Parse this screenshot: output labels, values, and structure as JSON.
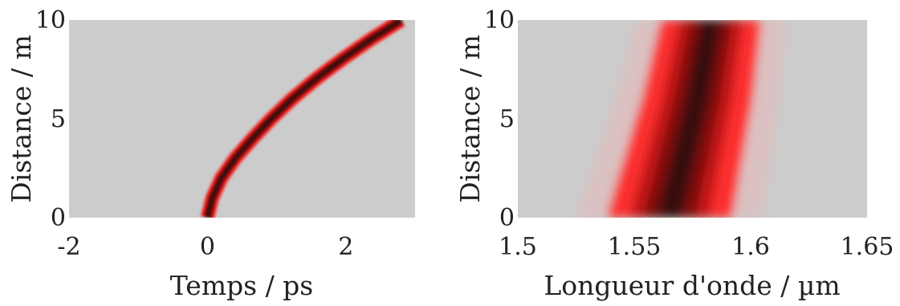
{
  "chart_data": [
    {
      "type": "heatmap",
      "xlabel": "Temps / ps",
      "ylabel": "Distance / m",
      "xlim": [
        -2,
        3
      ],
      "ylim": [
        0,
        10
      ],
      "xticks": [
        -2,
        0,
        2
      ],
      "yticks": [
        0,
        5,
        10
      ],
      "xtick_labels": [
        "-2",
        "0",
        "2"
      ],
      "ytick_labels": [
        "0",
        "5",
        "10"
      ],
      "background_color": "#cccccc",
      "colormap": [
        "#cccccc",
        "#ff2020",
        "#7a0a0a",
        "#2a0808"
      ],
      "pulse_center": {
        "distance": [
          0,
          1,
          2,
          3,
          4,
          5,
          6,
          7,
          8,
          9,
          10
        ],
        "time": [
          0.0,
          0.07,
          0.2,
          0.4,
          0.65,
          0.92,
          1.22,
          1.56,
          1.94,
          2.35,
          2.8
        ]
      },
      "pulse_halfwidth_ps": 0.1
    },
    {
      "type": "heatmap",
      "xlabel": "Longueur d'onde / µm",
      "ylabel": "Distance / m",
      "xlim": [
        1.5,
        1.65
      ],
      "ylim": [
        0,
        10
      ],
      "xticks": [
        1.5,
        1.55,
        1.6,
        1.65
      ],
      "yticks": [
        0,
        5,
        10
      ],
      "xtick_labels": [
        "1.5",
        "1.55",
        "1.6",
        "1.65"
      ],
      "ytick_labels": [
        "0",
        "5",
        "10"
      ],
      "background_color": "#cccccc",
      "colormap": [
        "#cccccc",
        "#ff2020",
        "#7a0a0a",
        "#2a0808"
      ],
      "spectrum_center": {
        "distance": [
          0,
          2,
          4,
          6,
          8,
          10
        ],
        "wavelength": [
          1.565,
          1.569,
          1.573,
          1.577,
          1.58,
          1.583
        ]
      },
      "spectrum_halfwidth_um": {
        "distance": [
          0,
          5,
          10
        ],
        "value": [
          0.02,
          0.018,
          0.016
        ]
      }
    }
  ]
}
